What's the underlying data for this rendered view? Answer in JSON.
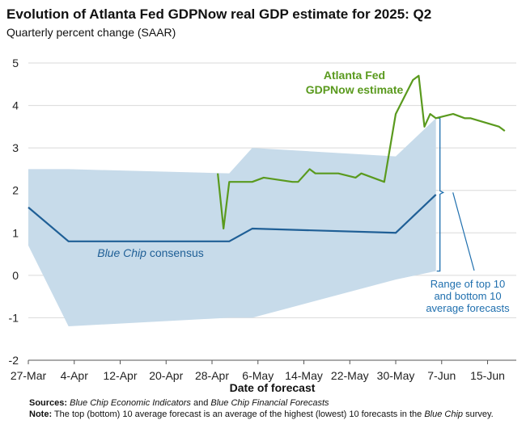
{
  "header": {
    "title": "Evolution of Atlanta Fed GDPNow real GDP estimate for 2025: Q2",
    "subtitle": "Quarterly percent change (SAAR)"
  },
  "footer": {
    "sources_label": "Sources:",
    "sources_part1": "Blue Chip Economic Indicators",
    "sources_and": " and ",
    "sources_part2": "Blue Chip Financial Forecasts",
    "note_label": "Note:",
    "note_text1": " The top (bottom) 10 average forecast is an average of the highest (lowest) 10 forecasts in the ",
    "note_italic": "Blue Chip",
    "note_text2": " survey."
  },
  "chart_data": {
    "type": "line",
    "xlabel": "Date of forecast",
    "ylabel": "",
    "ylim": [
      -2,
      5
    ],
    "yticks": [
      -2,
      -1,
      0,
      1,
      2,
      3,
      4,
      5
    ],
    "xlim": [
      "2025-03-27",
      "2025-06-20"
    ],
    "xticks": [
      {
        "date": "2025-03-27",
        "label": "27-Mar"
      },
      {
        "date": "2025-04-04",
        "label": "4-Apr"
      },
      {
        "date": "2025-04-12",
        "label": "12-Apr"
      },
      {
        "date": "2025-04-20",
        "label": "20-Apr"
      },
      {
        "date": "2025-04-28",
        "label": "28-Apr"
      },
      {
        "date": "2025-05-06",
        "label": "6-May"
      },
      {
        "date": "2025-05-14",
        "label": "14-May"
      },
      {
        "date": "2025-05-22",
        "label": "22-May"
      },
      {
        "date": "2025-05-30",
        "label": "30-May"
      },
      {
        "date": "2025-06-07",
        "label": "7-Jun"
      },
      {
        "date": "2025-06-15",
        "label": "15-Jun"
      }
    ],
    "grid": "horizontal",
    "colors": {
      "gdpnow": "#5a9a1e",
      "bluechip": "#1f5f96",
      "range_fill": "#c7dbea",
      "range_label": "#1f6fae",
      "grid": "#d9d9d9"
    },
    "series": [
      {
        "key": "gdpnow",
        "name": "Atlanta Fed GDPNow estimate",
        "label_lines": [
          "Atlanta Fed",
          "GDPNow estimate"
        ],
        "points": [
          [
            "2025-04-29",
            2.4
          ],
          [
            "2025-04-30",
            1.1
          ],
          [
            "2025-05-01",
            2.2
          ],
          [
            "2025-05-05",
            2.2
          ],
          [
            "2025-05-07",
            2.3
          ],
          [
            "2025-05-12",
            2.2
          ],
          [
            "2025-05-13",
            2.2
          ],
          [
            "2025-05-15",
            2.5
          ],
          [
            "2025-05-16",
            2.4
          ],
          [
            "2025-05-20",
            2.4
          ],
          [
            "2025-05-23",
            2.3
          ],
          [
            "2025-05-24",
            2.4
          ],
          [
            "2025-05-28",
            2.2
          ],
          [
            "2025-05-30",
            3.8
          ],
          [
            "2025-06-02",
            4.6
          ],
          [
            "2025-06-03",
            4.7
          ],
          [
            "2025-06-04",
            3.5
          ],
          [
            "2025-06-05",
            3.8
          ],
          [
            "2025-06-06",
            3.7
          ],
          [
            "2025-06-09",
            3.8
          ],
          [
            "2025-06-11",
            3.7
          ],
          [
            "2025-06-12",
            3.7
          ],
          [
            "2025-06-17",
            3.5
          ],
          [
            "2025-06-18",
            3.4
          ]
        ]
      },
      {
        "key": "bluechip",
        "name": "Blue Chip consensus",
        "label_italic": "Blue Chip",
        "label_rest": " consensus",
        "points": [
          [
            "2025-03-27",
            1.6
          ],
          [
            "2025-04-03",
            0.8
          ],
          [
            "2025-05-01",
            0.8
          ],
          [
            "2025-05-05",
            1.1
          ],
          [
            "2025-05-30",
            1.0
          ],
          [
            "2025-06-06",
            1.9
          ]
        ]
      }
    ],
    "band": {
      "name": "Range of top 10 and bottom 10 average forecasts",
      "label_lines": [
        "Range of top 10",
        "and bottom 10",
        "average forecasts"
      ],
      "upper": [
        [
          "2025-03-27",
          2.5
        ],
        [
          "2025-04-03",
          2.5
        ],
        [
          "2025-05-01",
          2.4
        ],
        [
          "2025-05-05",
          3.0
        ],
        [
          "2025-05-30",
          2.8
        ],
        [
          "2025-06-06",
          3.7
        ]
      ],
      "lower": [
        [
          "2025-03-27",
          0.7
        ],
        [
          "2025-04-03",
          -1.2
        ],
        [
          "2025-05-01",
          -1.0
        ],
        [
          "2025-05-05",
          -1.0
        ],
        [
          "2025-05-30",
          -0.1
        ],
        [
          "2025-06-06",
          0.1
        ]
      ]
    }
  }
}
